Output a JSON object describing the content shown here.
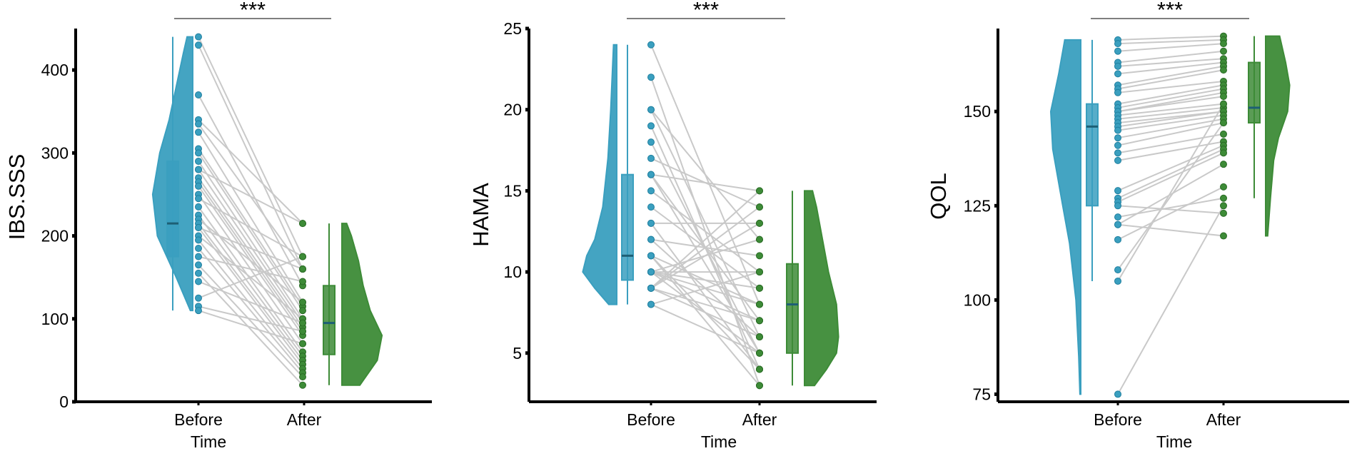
{
  "colors": {
    "before": "#3a9fbf",
    "after": "#3d8b37",
    "pair_line": "#c9c9c9",
    "axis": "#000000"
  },
  "chart_data": [
    {
      "type": "raincloud-paired",
      "xlabel": "Time",
      "ylabel": "IBS.SSS",
      "categories": [
        "Before",
        "After"
      ],
      "yticks": [
        0,
        100,
        200,
        300,
        400
      ],
      "ylim": [
        0,
        450
      ],
      "significance": "***",
      "box": {
        "Before": {
          "min": 110,
          "q1": 175,
          "median": 215,
          "q3": 290,
          "max": 440
        },
        "After": {
          "min": 20,
          "q1": 57,
          "median": 95,
          "q3": 140,
          "max": 215
        }
      },
      "violin": {
        "Before": [
          [
            110,
            0.05
          ],
          [
            150,
            0.35
          ],
          [
            200,
            0.75
          ],
          [
            250,
            0.85
          ],
          [
            300,
            0.7
          ],
          [
            340,
            0.5
          ],
          [
            380,
            0.35
          ],
          [
            420,
            0.2
          ],
          [
            440,
            0.12
          ]
        ],
        "After": [
          [
            20,
            0.38
          ],
          [
            50,
            0.75
          ],
          [
            80,
            0.85
          ],
          [
            110,
            0.6
          ],
          [
            140,
            0.45
          ],
          [
            170,
            0.35
          ],
          [
            200,
            0.2
          ],
          [
            215,
            0.1
          ]
        ]
      },
      "pairs": [
        [
          440,
          175
        ],
        [
          430,
          160
        ],
        [
          370,
          140
        ],
        [
          340,
          215
        ],
        [
          335,
          160
        ],
        [
          325,
          120
        ],
        [
          305,
          115
        ],
        [
          300,
          110
        ],
        [
          290,
          100
        ],
        [
          280,
          95
        ],
        [
          280,
          215
        ],
        [
          270,
          90
        ],
        [
          265,
          85
        ],
        [
          260,
          80
        ],
        [
          250,
          70
        ],
        [
          245,
          175
        ],
        [
          235,
          60
        ],
        [
          225,
          55
        ],
        [
          220,
          120
        ],
        [
          215,
          50
        ],
        [
          210,
          160
        ],
        [
          210,
          45
        ],
        [
          200,
          100
        ],
        [
          195,
          40
        ],
        [
          185,
          35
        ],
        [
          175,
          145
        ],
        [
          165,
          30
        ],
        [
          155,
          20
        ],
        [
          145,
          95
        ],
        [
          125,
          175
        ],
        [
          115,
          85
        ],
        [
          110,
          70
        ]
      ]
    },
    {
      "type": "raincloud-paired",
      "xlabel": "Time",
      "ylabel": "HAMA",
      "categories": [
        "Before",
        "After"
      ],
      "yticks": [
        5,
        10,
        15,
        20,
        25
      ],
      "ylim": [
        2,
        25
      ],
      "significance": "***",
      "box": {
        "Before": {
          "min": 8,
          "q1": 9.5,
          "median": 11,
          "q3": 16,
          "max": 24
        },
        "After": {
          "min": 3,
          "q1": 5,
          "median": 8,
          "q3": 10.5,
          "max": 15
        }
      },
      "violin": {
        "Before": [
          [
            8,
            0.2
          ],
          [
            9,
            0.55
          ],
          [
            10,
            0.85
          ],
          [
            11,
            0.75
          ],
          [
            12,
            0.55
          ],
          [
            14,
            0.35
          ],
          [
            17,
            0.22
          ],
          [
            20,
            0.15
          ],
          [
            24,
            0.08
          ]
        ],
        "After": [
          [
            3,
            0.25
          ],
          [
            4,
            0.55
          ],
          [
            5,
            0.8
          ],
          [
            6,
            0.85
          ],
          [
            8,
            0.8
          ],
          [
            10,
            0.6
          ],
          [
            12,
            0.45
          ],
          [
            14,
            0.3
          ],
          [
            15,
            0.2
          ]
        ]
      },
      "pairs": [
        [
          24,
          8
        ],
        [
          22,
          3
        ],
        [
          20,
          6
        ],
        [
          20,
          12
        ],
        [
          19,
          4
        ],
        [
          18,
          5
        ],
        [
          17,
          14
        ],
        [
          16,
          5
        ],
        [
          16,
          15
        ],
        [
          16,
          7
        ],
        [
          15,
          10
        ],
        [
          14,
          9
        ],
        [
          13,
          13
        ],
        [
          13,
          4
        ],
        [
          12,
          6
        ],
        [
          12,
          11
        ],
        [
          11,
          4
        ],
        [
          11,
          3
        ],
        [
          11,
          8
        ],
        [
          10,
          7
        ],
        [
          10,
          5
        ],
        [
          10,
          9
        ],
        [
          10,
          10
        ],
        [
          10,
          8
        ],
        [
          10,
          12
        ],
        [
          9,
          15
        ],
        [
          9,
          6
        ],
        [
          9,
          13
        ],
        [
          9,
          14
        ],
        [
          9,
          7
        ],
        [
          8,
          5
        ],
        [
          8,
          10
        ]
      ]
    },
    {
      "type": "raincloud-paired",
      "xlabel": "Time",
      "ylabel": "QOL",
      "categories": [
        "Before",
        "After"
      ],
      "yticks": [
        75,
        100,
        125,
        150
      ],
      "ylim": [
        73,
        172
      ],
      "significance": "***",
      "box": {
        "Before": {
          "min": 105,
          "q1": 125,
          "median": 146,
          "q3": 152,
          "max": 169
        },
        "After": {
          "min": 127,
          "q1": 147,
          "median": 151,
          "q3": 163,
          "max": 170
        }
      },
      "violin": {
        "Before": [
          [
            75,
            0.02
          ],
          [
            85,
            0.05
          ],
          [
            100,
            0.12
          ],
          [
            115,
            0.28
          ],
          [
            125,
            0.45
          ],
          [
            140,
            0.7
          ],
          [
            150,
            0.75
          ],
          [
            160,
            0.55
          ],
          [
            169,
            0.4
          ]
        ],
        "After": [
          [
            117,
            0.05
          ],
          [
            127,
            0.12
          ],
          [
            137,
            0.2
          ],
          [
            143,
            0.32
          ],
          [
            150,
            0.55
          ],
          [
            157,
            0.6
          ],
          [
            163,
            0.5
          ],
          [
            170,
            0.35
          ]
        ]
      },
      "pairs": [
        [
          169,
          170
        ],
        [
          168,
          169
        ],
        [
          166,
          168
        ],
        [
          163,
          166
        ],
        [
          162,
          164
        ],
        [
          160,
          163
        ],
        [
          157,
          162
        ],
        [
          156,
          161
        ],
        [
          155,
          158
        ],
        [
          152,
          157
        ],
        [
          151,
          156
        ],
        [
          150,
          155
        ],
        [
          150,
          154
        ],
        [
          149,
          152
        ],
        [
          148,
          151
        ],
        [
          147,
          150
        ],
        [
          146,
          150
        ],
        [
          145,
          149
        ],
        [
          143,
          148
        ],
        [
          141,
          147
        ],
        [
          139,
          144
        ],
        [
          137,
          142
        ],
        [
          129,
          141
        ],
        [
          127,
          140
        ],
        [
          126,
          139
        ],
        [
          125,
          123
        ],
        [
          122,
          127
        ],
        [
          120,
          117
        ],
        [
          120,
          136
        ],
        [
          116,
          130
        ],
        [
          108,
          147
        ],
        [
          105,
          152
        ],
        [
          75,
          125
        ]
      ]
    }
  ]
}
